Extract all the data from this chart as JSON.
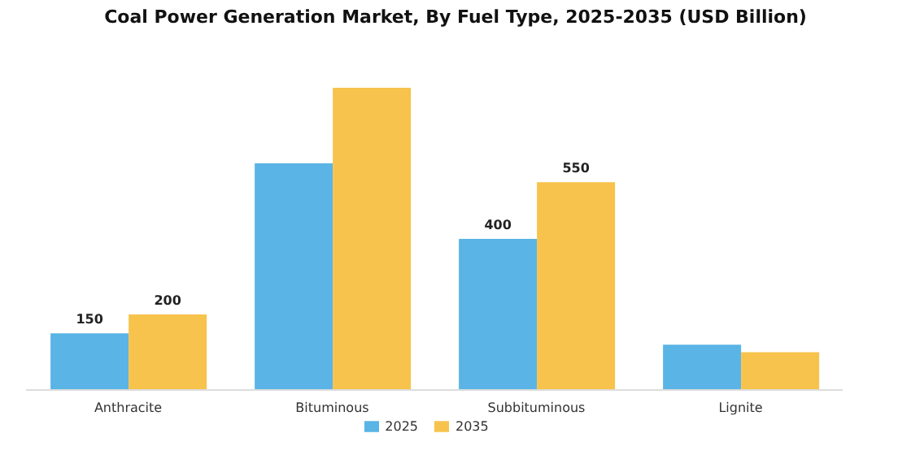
{
  "chart_data": {
    "type": "bar",
    "title": "Coal Power Generation Market, By Fuel Type, 2025-2035 (USD Billion)",
    "categories": [
      "Anthracite",
      "Bituminous",
      "Subbituminous",
      "Lignite"
    ],
    "series": [
      {
        "name": "2025",
        "color": "#5ab4e5",
        "values": [
          150,
          600,
          400,
          120
        ],
        "value_labels": [
          "150",
          null,
          "400",
          null
        ]
      },
      {
        "name": "2035",
        "color": "#f7c34c",
        "values": [
          200,
          800,
          550,
          100
        ],
        "value_labels": [
          "200",
          null,
          "550",
          null
        ]
      }
    ],
    "legend": "bottom",
    "grid": false
  }
}
